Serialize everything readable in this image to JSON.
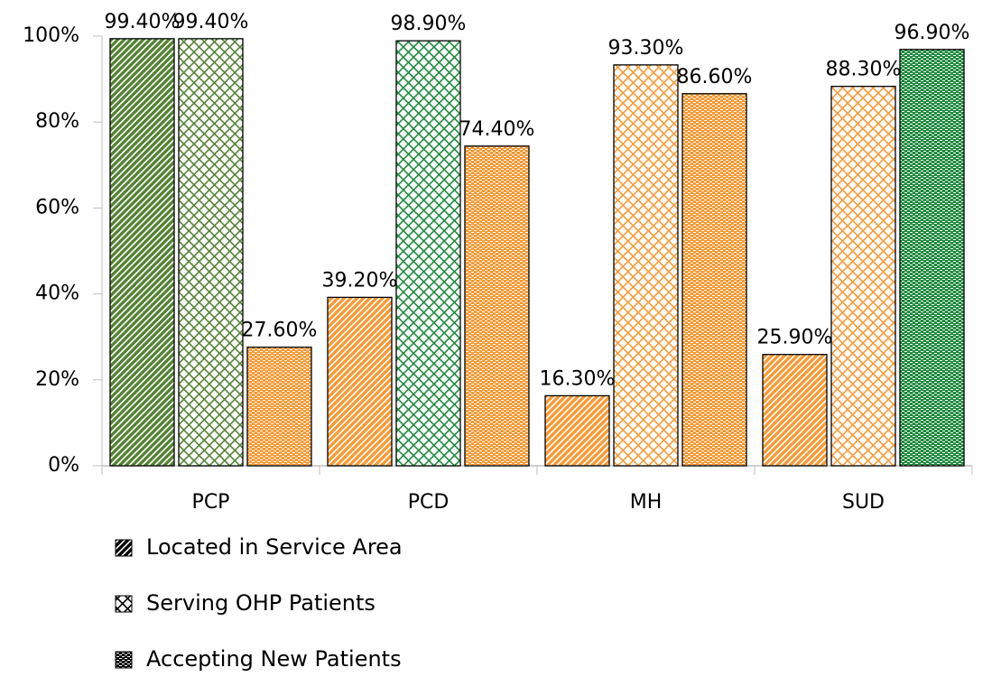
{
  "chart_data": {
    "type": "bar",
    "categories": [
      "PCP",
      "PCD",
      "MH",
      "SUD"
    ],
    "series": [
      {
        "name": "Located in Service Area",
        "pattern": "diagonal",
        "color": "#000000",
        "colors": [
          "#548235",
          "#f79a36",
          "#f79a36",
          "#f79a36"
        ],
        "values": [
          99.4,
          39.2,
          16.3,
          25.9
        ],
        "value_labels": [
          "99.40%",
          "39.20%",
          "16.30%",
          "25.90%"
        ]
      },
      {
        "name": "Serving OHP Patients",
        "pattern": "crosshatch",
        "color": "#000000",
        "colors": [
          "#548235",
          "#1f8a3e",
          "#f79a36",
          "#f79a36"
        ],
        "values": [
          99.4,
          98.9,
          93.3,
          88.3
        ],
        "value_labels": [
          "99.40%",
          "98.90%",
          "93.30%",
          "88.30%"
        ]
      },
      {
        "name": "Accepting New Patients",
        "pattern": "dots",
        "color": "#000000",
        "colors": [
          "#f79a36",
          "#f79a36",
          "#f79a36",
          "#1f8a3e"
        ],
        "values": [
          27.6,
          74.4,
          86.6,
          96.9
        ],
        "value_labels": [
          "27.60%",
          "74.40%",
          "86.60%",
          "96.90%"
        ]
      }
    ],
    "ylim": [
      0,
      100
    ],
    "yticks": [
      {
        "value": 0,
        "label": "0%"
      },
      {
        "value": 20,
        "label": "20%"
      },
      {
        "value": 40,
        "label": "40%"
      },
      {
        "value": 60,
        "label": "60%"
      },
      {
        "value": 80,
        "label": "80%"
      },
      {
        "value": 100,
        "label": "100%"
      }
    ],
    "legend": "bottom-left"
  }
}
